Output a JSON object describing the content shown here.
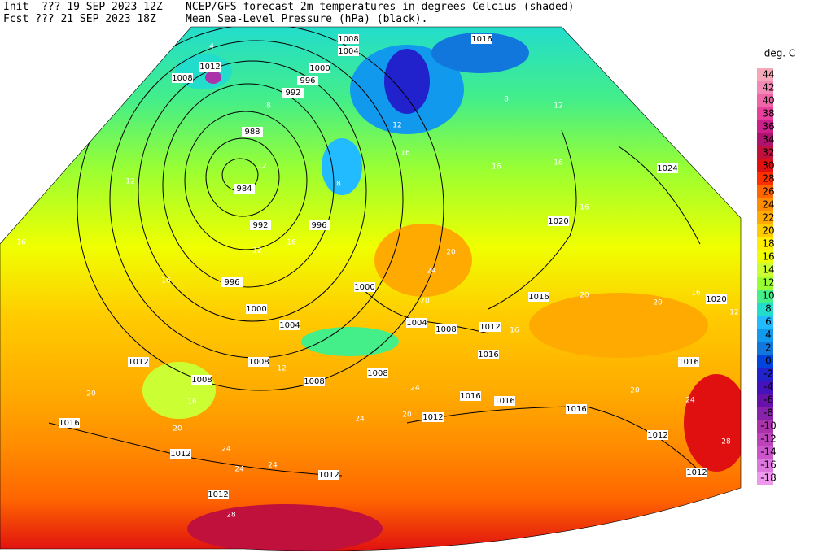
{
  "header": {
    "init": "Init  ??? 19 SEP 2023 12Z",
    "fcst": "Fcst ??? 21 SEP 2023 18Z",
    "title1": "NCEP/GFS forecast 2m temperatures in degrees Celcius (shaded)",
    "title2": "Mean Sea-Level Pressure (hPa) (black)."
  },
  "legend": {
    "title": "deg. C",
    "values": [
      44,
      42,
      40,
      38,
      36,
      34,
      32,
      30,
      28,
      26,
      24,
      22,
      20,
      18,
      16,
      14,
      12,
      10,
      8,
      6,
      4,
      2,
      0,
      -2,
      -4,
      -6,
      -8,
      -10,
      -12,
      -14,
      -16,
      -18
    ],
    "colors": [
      "#f4a8b8",
      "#f28ab8",
      "#ee66a8",
      "#e6409a",
      "#cc1f8a",
      "#b0136e",
      "#c0103c",
      "#e01010",
      "#ff3000",
      "#ff6600",
      "#ff8c00",
      "#ffaa00",
      "#ffcc00",
      "#ffee00",
      "#f0ff00",
      "#ccff33",
      "#99ff33",
      "#44ee88",
      "#22ddcc",
      "#22bbff",
      "#1199ee",
      "#1177dd",
      "#0044dd",
      "#2222cc",
      "#4411bb",
      "#6611aa",
      "#8822aa",
      "#aa33aa",
      "#bb44bb",
      "#cc55cc",
      "#dd77dd",
      "#ee99ee"
    ]
  },
  "isobar_labels": [
    "1008",
    "1004",
    "1016",
    "1012",
    "1008",
    "1000",
    "996",
    "992",
    "988",
    "984",
    "992",
    "996",
    "1000",
    "996",
    "1000",
    "1004",
    "1004",
    "1008",
    "1012",
    "1016",
    "1016",
    "1020",
    "1024",
    "1020",
    "1016",
    "1008",
    "1008",
    "1012",
    "1008",
    "1008",
    "1016",
    "1016",
    "1016",
    "1012",
    "1012",
    "1012",
    "1016",
    "1012",
    "1012",
    "1012"
  ],
  "temperature_labels": [
    "4",
    "8",
    "12",
    "16",
    "16",
    "16",
    "12",
    "12",
    "12",
    "8",
    "16",
    "16",
    "16",
    "20",
    "24",
    "20",
    "20",
    "16",
    "20",
    "12",
    "16",
    "20",
    "20",
    "16",
    "20",
    "24",
    "24",
    "24",
    "24",
    "20",
    "24",
    "28",
    "28",
    "24",
    "12",
    "12",
    "8",
    "16"
  ]
}
